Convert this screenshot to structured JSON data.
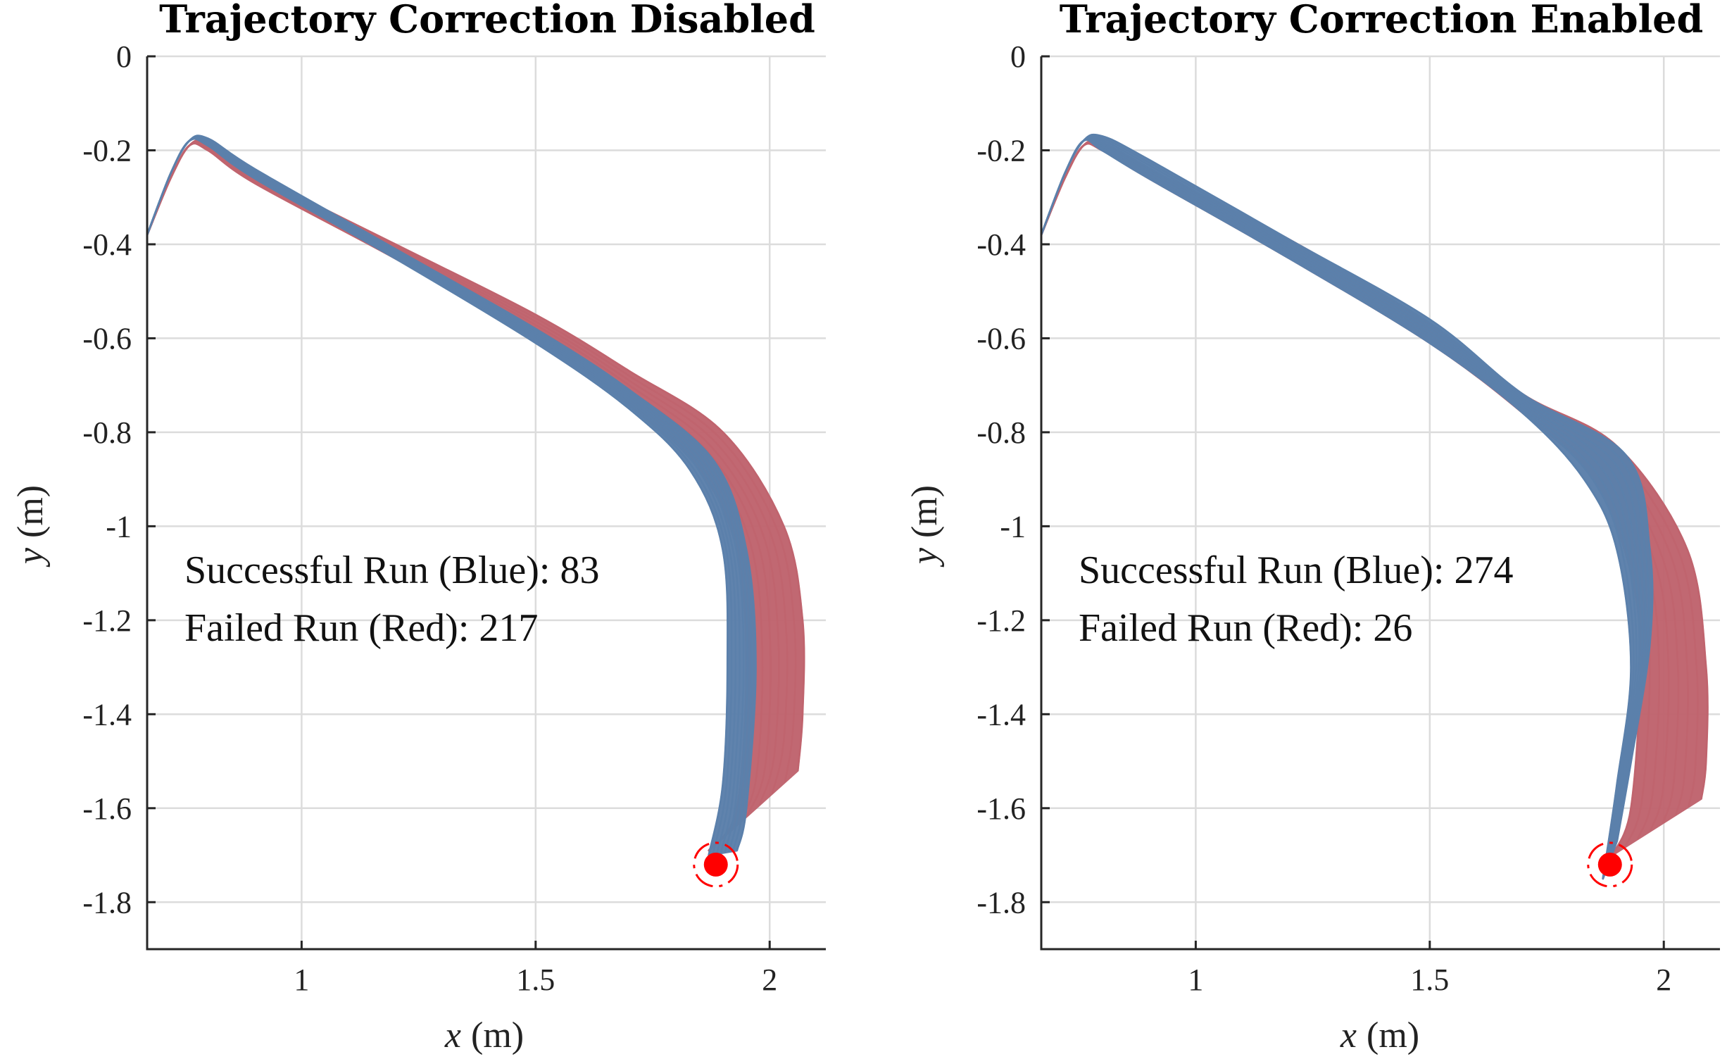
{
  "chart_data": [
    {
      "type": "line",
      "title": "Trajectory Correction Disabled",
      "xlabel_var": "x",
      "xlabel_unit": "(m)",
      "ylabel_var": "y",
      "ylabel_unit": "(m)",
      "xlim": [
        0.67,
        2.12
      ],
      "ylim": [
        -1.9,
        0
      ],
      "xticks": [
        1,
        1.5,
        2
      ],
      "xtick_labels": [
        "1",
        "1.5",
        "2"
      ],
      "yticks": [
        0,
        -0.2,
        -0.4,
        -0.6,
        -0.8,
        -1,
        -1.2,
        -1.4,
        -1.6,
        -1.8
      ],
      "ytick_labels": [
        "0",
        "-0.2",
        "-0.4",
        "-0.6",
        "-0.8",
        "-1",
        "-1.2",
        "-1.4",
        "-1.6",
        "-1.8"
      ],
      "grid": true,
      "annotation_lines": [
        "Successful Run (Blue): 83",
        "Failed Run (Red): 217"
      ],
      "series": [
        {
          "color": "#c0646e",
          "band_envelope": {
            "upper": [
              [
                0.67,
                -0.38
              ],
              [
                0.72,
                -0.26
              ],
              [
                0.76,
                -0.19
              ],
              [
                0.8,
                -0.185
              ],
              [
                0.9,
                -0.25
              ],
              [
                1.2,
                -0.4
              ],
              [
                1.5,
                -0.55
              ],
              [
                1.7,
                -0.67
              ],
              [
                1.9,
                -0.8
              ],
              [
                2.03,
                -1.0
              ],
              [
                2.07,
                -1.2
              ],
              [
                2.07,
                -1.4
              ],
              [
                2.06,
                -1.52
              ]
            ],
            "lower": [
              [
                0.67,
                -0.38
              ],
              [
                0.72,
                -0.26
              ],
              [
                0.76,
                -0.19
              ],
              [
                0.8,
                -0.2
              ],
              [
                0.9,
                -0.27
              ],
              [
                1.2,
                -0.43
              ],
              [
                1.5,
                -0.6
              ],
              [
                1.7,
                -0.74
              ],
              [
                1.85,
                -0.88
              ],
              [
                1.93,
                -1.05
              ],
              [
                1.95,
                -1.3
              ],
              [
                1.93,
                -1.6
              ],
              [
                1.87,
                -1.69
              ]
            ]
          }
        },
        {
          "color": "#5b80ab",
          "band_envelope": {
            "upper": [
              [
                0.67,
                -0.38
              ],
              [
                0.72,
                -0.25
              ],
              [
                0.76,
                -0.18
              ],
              [
                0.8,
                -0.175
              ],
              [
                0.9,
                -0.24
              ],
              [
                1.2,
                -0.41
              ],
              [
                1.5,
                -0.58
              ],
              [
                1.7,
                -0.71
              ],
              [
                1.88,
                -0.86
              ],
              [
                1.95,
                -1.05
              ],
              [
                1.97,
                -1.3
              ],
              [
                1.95,
                -1.6
              ],
              [
                1.93,
                -1.69
              ]
            ],
            "lower": [
              [
                0.67,
                -0.38
              ],
              [
                0.72,
                -0.25
              ],
              [
                0.76,
                -0.18
              ],
              [
                0.8,
                -0.19
              ],
              [
                0.9,
                -0.26
              ],
              [
                1.2,
                -0.43
              ],
              [
                1.5,
                -0.61
              ],
              [
                1.7,
                -0.75
              ],
              [
                1.83,
                -0.88
              ],
              [
                1.9,
                -1.05
              ],
              [
                1.91,
                -1.3
              ],
              [
                1.9,
                -1.55
              ],
              [
                1.87,
                -1.7
              ]
            ]
          }
        }
      ],
      "target_point": {
        "x": 1.885,
        "y": -1.72,
        "color": "#ff0000"
      }
    },
    {
      "type": "line",
      "title": "Trajectory Correction Enabled",
      "xlabel_var": "x",
      "xlabel_unit": "(m)",
      "ylabel_var": "y",
      "ylabel_unit": "(m)",
      "xlim": [
        0.67,
        2.12
      ],
      "ylim": [
        -1.9,
        0
      ],
      "xticks": [
        1,
        1.5,
        2
      ],
      "xtick_labels": [
        "1",
        "1.5",
        "2"
      ],
      "yticks": [
        0,
        -0.2,
        -0.4,
        -0.6,
        -0.8,
        -1,
        -1.2,
        -1.4,
        -1.6,
        -1.8
      ],
      "ytick_labels": [
        "0",
        "-0.2",
        "-0.4",
        "-0.6",
        "-0.8",
        "-1",
        "-1.2",
        "-1.4",
        "-1.6",
        "-1.8"
      ],
      "grid": true,
      "annotation_lines": [
        "Successful Run (Blue): 274",
        "Failed Run (Red): 26"
      ],
      "series": [
        {
          "color": "#c0646e",
          "band_envelope": {
            "upper": [
              [
                0.67,
                -0.38
              ],
              [
                0.72,
                -0.26
              ],
              [
                0.76,
                -0.19
              ],
              [
                0.8,
                -0.185
              ],
              [
                0.9,
                -0.24
              ],
              [
                1.2,
                -0.39
              ],
              [
                1.5,
                -0.57
              ],
              [
                1.7,
                -0.72
              ],
              [
                1.9,
                -0.83
              ],
              [
                2.05,
                -1.05
              ],
              [
                2.09,
                -1.3
              ],
              [
                2.09,
                -1.5
              ],
              [
                2.08,
                -1.58
              ]
            ],
            "lower": [
              [
                0.67,
                -0.38
              ],
              [
                0.72,
                -0.26
              ],
              [
                0.76,
                -0.19
              ],
              [
                0.8,
                -0.2
              ],
              [
                0.9,
                -0.26
              ],
              [
                1.2,
                -0.43
              ],
              [
                1.5,
                -0.61
              ],
              [
                1.7,
                -0.76
              ],
              [
                1.85,
                -0.9
              ],
              [
                1.93,
                -1.1
              ],
              [
                1.95,
                -1.3
              ],
              [
                1.93,
                -1.6
              ],
              [
                1.89,
                -1.7
              ]
            ]
          }
        },
        {
          "color": "#5b80ab",
          "band_envelope": {
            "upper": [
              [
                0.67,
                -0.38
              ],
              [
                0.72,
                -0.25
              ],
              [
                0.76,
                -0.18
              ],
              [
                0.8,
                -0.17
              ],
              [
                0.9,
                -0.22
              ],
              [
                1.2,
                -0.39
              ],
              [
                1.5,
                -0.56
              ],
              [
                1.7,
                -0.72
              ],
              [
                1.92,
                -0.85
              ],
              [
                1.97,
                -1.05
              ],
              [
                1.97,
                -1.25
              ],
              [
                1.93,
                -1.5
              ],
              [
                1.9,
                -1.67
              ]
            ],
            "lower": [
              [
                0.67,
                -0.38
              ],
              [
                0.72,
                -0.25
              ],
              [
                0.76,
                -0.18
              ],
              [
                0.8,
                -0.2
              ],
              [
                0.9,
                -0.26
              ],
              [
                1.2,
                -0.43
              ],
              [
                1.5,
                -0.61
              ],
              [
                1.7,
                -0.76
              ],
              [
                1.83,
                -0.9
              ],
              [
                1.9,
                -1.05
              ],
              [
                1.93,
                -1.3
              ],
              [
                1.9,
                -1.55
              ],
              [
                1.87,
                -1.75
              ]
            ]
          }
        }
      ],
      "target_point": {
        "x": 1.885,
        "y": -1.72,
        "color": "#ff0000"
      }
    }
  ]
}
